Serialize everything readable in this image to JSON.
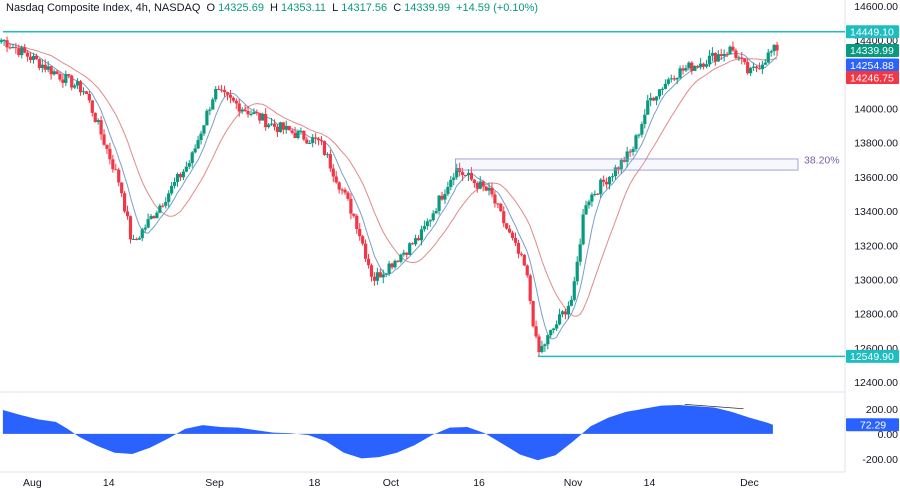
{
  "header": {
    "symbol": "Nasdaq Composite Index, 4h, NASDAQ",
    "o_label": "O",
    "o_value": "14325.69",
    "h_label": "H",
    "h_value": "14353.11",
    "l_label": "L",
    "l_value": "14317.56",
    "c_label": "C",
    "c_value": "14339.99",
    "change": "+14.59 (+0.10%)"
  },
  "colors": {
    "up": "#089981",
    "down": "#f23645",
    "ma_fast": "#7b9ec9",
    "ma_slow": "#e08a8a",
    "level_line": "#1ebdc0",
    "oscillator": "#2962ff",
    "fib_box_border": "#8a8fc7",
    "divergence_line": "#333333"
  },
  "chart_data": [
    {
      "type": "candlestick",
      "ylim": [
        12400,
        14600
      ],
      "y_ticks": [
        "14600.00",
        "14400.00",
        "14200.00",
        "14000.00",
        "13800.00",
        "13600.00",
        "13400.00",
        "13200.00",
        "13000.00",
        "12800.00",
        "12600.00",
        "12400.00"
      ],
      "x_ticks": [
        "Aug",
        "14",
        "Sep",
        "18",
        "Oct",
        "16",
        "Nov",
        "14",
        "Dec"
      ],
      "price_labels": [
        {
          "text": "14449.10",
          "value": 14449.1,
          "color": "#1ebdc0"
        },
        {
          "text": "14339.99",
          "value": 14339.99,
          "color": "#089981"
        },
        {
          "text": "14254.88",
          "value": 14254.88,
          "color": "#2962ff"
        },
        {
          "text": "14246.75",
          "value": 14246.75,
          "color": "#f23645"
        },
        {
          "text": "12549.90",
          "value": 12549.9,
          "color": "#1ebdc0"
        }
      ],
      "horizontal_levels": [
        {
          "value": 14449.1,
          "from": "Jul-27",
          "to": "end"
        },
        {
          "value": 12549.9,
          "from": "Oct-26",
          "to": "end"
        }
      ],
      "fib_zone": {
        "label": "38.20%",
        "top": 13705,
        "bottom": 13640,
        "from": "Oct-12",
        "to": "end"
      },
      "trend_segments": [
        {
          "from": "Jul-27",
          "to": "Aug-10",
          "from_value": 14400,
          "to_value": 14100
        },
        {
          "from": "Aug-10",
          "to": "Aug-16",
          "from_value": 14100,
          "to_value": 13550
        },
        {
          "from": "Aug-16",
          "to": "Aug-18",
          "from_value": 13550,
          "to_value": 13200
        },
        {
          "from": "Aug-18",
          "to": "Aug-28",
          "from_value": 13200,
          "to_value": 13700
        },
        {
          "from": "Aug-28",
          "to": "Sep-01",
          "from_value": 13700,
          "to_value": 14100
        },
        {
          "from": "Sep-01",
          "to": "Sep-11",
          "from_value": 14100,
          "to_value": 13900
        },
        {
          "from": "Sep-11",
          "to": "Sep-19",
          "from_value": 13900,
          "to_value": 13800
        },
        {
          "from": "Sep-19",
          "to": "Sep-25",
          "from_value": 13800,
          "to_value": 13350
        },
        {
          "from": "Sep-25",
          "to": "Sep-28",
          "from_value": 13350,
          "to_value": 13000
        },
        {
          "from": "Sep-28",
          "to": "Oct-06",
          "from_value": 13000,
          "to_value": 13250
        },
        {
          "from": "Oct-06",
          "to": "Oct-12",
          "from_value": 13250,
          "to_value": 13650
        },
        {
          "from": "Oct-12",
          "to": "Oct-18",
          "from_value": 13650,
          "to_value": 13500
        },
        {
          "from": "Oct-18",
          "to": "Oct-24",
          "from_value": 13500,
          "to_value": 13050
        },
        {
          "from": "Oct-24",
          "to": "Oct-26",
          "from_value": 13050,
          "to_value": 12560
        },
        {
          "from": "Oct-26",
          "to": "Nov-01",
          "from_value": 12560,
          "to_value": 12900
        },
        {
          "from": "Nov-01",
          "to": "Nov-03",
          "from_value": 12900,
          "to_value": 13450
        },
        {
          "from": "Nov-03",
          "to": "Nov-11",
          "from_value": 13450,
          "to_value": 13750
        },
        {
          "from": "Nov-11",
          "to": "Nov-14",
          "from_value": 13750,
          "to_value": 14050
        },
        {
          "from": "Nov-14",
          "to": "Nov-18",
          "from_value": 14050,
          "to_value": 14200
        },
        {
          "from": "Nov-18",
          "to": "Nov-28",
          "from_value": 14200,
          "to_value": 14350
        },
        {
          "from": "Nov-28",
          "to": "Dec-01",
          "from_value": 14350,
          "to_value": 14200
        },
        {
          "from": "Dec-01",
          "to": "Dec-05",
          "from_value": 14200,
          "to_value": 14340
        }
      ]
    },
    {
      "type": "area",
      "ylim": [
        -240,
        230
      ],
      "y_ticks": [
        "200.00",
        "0.00",
        "-200.00"
      ],
      "last_value": {
        "text": "72.29",
        "value": 72.29
      },
      "divergence_line": {
        "from": "Nov-20",
        "to": "Nov-30",
        "from_value": 235,
        "to_value": 200
      },
      "points": [
        {
          "x": "Jul-27",
          "y": 190
        },
        {
          "x": "Jul-30",
          "y": 150
        },
        {
          "x": "Aug-02",
          "y": 115
        },
        {
          "x": "Aug-05",
          "y": 95
        },
        {
          "x": "Aug-07",
          "y": 40
        },
        {
          "x": "Aug-09",
          "y": -25
        },
        {
          "x": "Aug-12",
          "y": -95
        },
        {
          "x": "Aug-15",
          "y": -150
        },
        {
          "x": "Aug-18",
          "y": -160
        },
        {
          "x": "Aug-21",
          "y": -110
        },
        {
          "x": "Aug-24",
          "y": -40
        },
        {
          "x": "Aug-27",
          "y": 40
        },
        {
          "x": "Aug-30",
          "y": 70
        },
        {
          "x": "Sep-02",
          "y": 55
        },
        {
          "x": "Sep-05",
          "y": 50
        },
        {
          "x": "Sep-08",
          "y": 30
        },
        {
          "x": "Sep-11",
          "y": 10
        },
        {
          "x": "Sep-14",
          "y": 5
        },
        {
          "x": "Sep-17",
          "y": -10
        },
        {
          "x": "Sep-20",
          "y": -60
        },
        {
          "x": "Sep-23",
          "y": -150
        },
        {
          "x": "Sep-26",
          "y": -195
        },
        {
          "x": "Sep-29",
          "y": -185
        },
        {
          "x": "Oct-02",
          "y": -150
        },
        {
          "x": "Oct-05",
          "y": -90
        },
        {
          "x": "Oct-08",
          "y": -10
        },
        {
          "x": "Oct-11",
          "y": 50
        },
        {
          "x": "Oct-14",
          "y": 55
        },
        {
          "x": "Oct-17",
          "y": 5
        },
        {
          "x": "Oct-20",
          "y": -80
        },
        {
          "x": "Oct-23",
          "y": -165
        },
        {
          "x": "Oct-26",
          "y": -210
        },
        {
          "x": "Oct-29",
          "y": -170
        },
        {
          "x": "Nov-01",
          "y": -60
        },
        {
          "x": "Nov-04",
          "y": 60
        },
        {
          "x": "Nov-07",
          "y": 130
        },
        {
          "x": "Nov-10",
          "y": 175
        },
        {
          "x": "Nov-13",
          "y": 200
        },
        {
          "x": "Nov-16",
          "y": 225
        },
        {
          "x": "Nov-19",
          "y": 230
        },
        {
          "x": "Nov-22",
          "y": 220
        },
        {
          "x": "Nov-25",
          "y": 210
        },
        {
          "x": "Nov-28",
          "y": 175
        },
        {
          "x": "Dec-01",
          "y": 130
        },
        {
          "x": "Dec-04",
          "y": 90
        },
        {
          "x": "Dec-05",
          "y": 72
        }
      ]
    }
  ]
}
